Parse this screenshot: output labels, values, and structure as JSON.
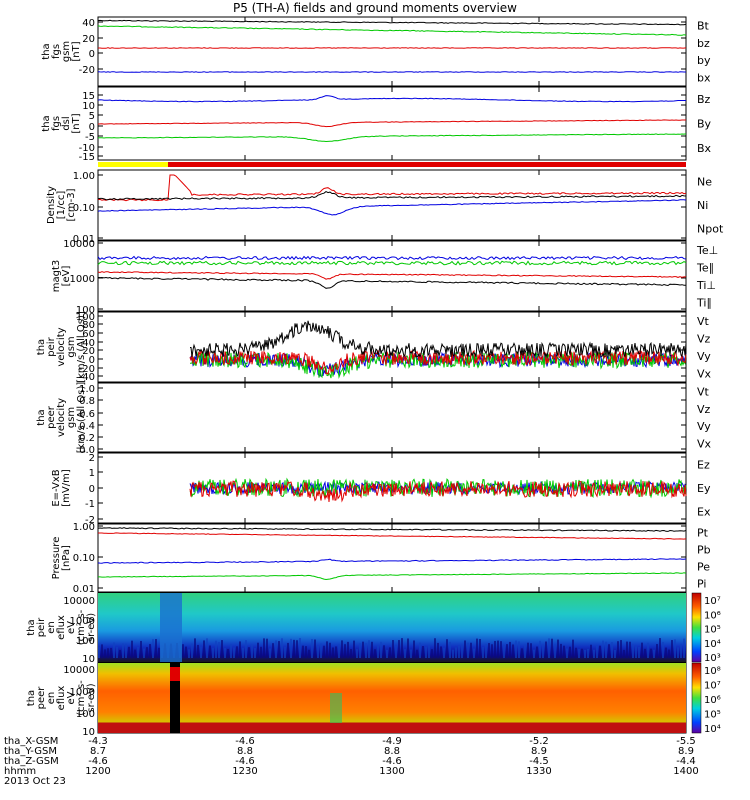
{
  "title": "P5 (TH-A) fields and ground moments overview",
  "date": "2013 Oct 23",
  "panels": [
    {
      "id": "fgs-gsm",
      "ylabel": [
        "tha",
        "fgs",
        "gsm",
        "[nT]"
      ],
      "ticks": [
        "40",
        "20",
        "0",
        "-20"
      ],
      "legend": [
        {
          "label": "Bt",
          "color": "#000000"
        },
        {
          "label": "bz",
          "color": "#e00000"
        },
        {
          "label": "by",
          "color": "#00c800"
        },
        {
          "label": "bx",
          "color": "#0000e0"
        }
      ]
    },
    {
      "id": "fgs-dsl",
      "ylabel": [
        "tha",
        "fgs",
        "dsl",
        "[nT]"
      ],
      "ticks": [
        "15",
        "10",
        "5",
        "0",
        "-5",
        "-10",
        "-15"
      ],
      "legend": [
        {
          "label": "Bz",
          "color": "#e00000"
        },
        {
          "label": "By",
          "color": "#00c800"
        },
        {
          "label": "Bx",
          "color": "#0000e0"
        }
      ]
    },
    {
      "id": "density",
      "ylabel": [
        "Density",
        "[1/cc]",
        "[cm-3]"
      ],
      "ticks": [
        "1.00",
        "0.10",
        "0.01"
      ],
      "legend": [
        {
          "label": "Ne",
          "color": "#e00000"
        },
        {
          "label": "Ni",
          "color": "#000000"
        },
        {
          "label": "Npot",
          "color": "#0000e0"
        }
      ]
    },
    {
      "id": "temperature",
      "ylabel": [
        "magt3",
        "[eV]"
      ],
      "ticks": [
        "10000",
        "1000",
        "100"
      ],
      "legend": [
        {
          "label": "Te⊥",
          "color": "#e00000"
        },
        {
          "label": "Te∥",
          "color": "#000000"
        },
        {
          "label": "Ti⊥",
          "color": "#e00000"
        },
        {
          "label": "Ti∥",
          "color": "#00c800"
        }
      ]
    },
    {
      "id": "peir-velocity",
      "ylabel": [
        "tha",
        "peir",
        "velocity",
        "gsm",
        "[km/s (All Qs)]"
      ],
      "ticks": [
        "100",
        "80",
        "60",
        "40",
        "20",
        "0",
        "-20",
        "-40"
      ],
      "legend": [
        {
          "label": "Vt",
          "color": "#000000"
        },
        {
          "label": "Vz",
          "color": "#e00000"
        },
        {
          "label": "Vy",
          "color": "#00c800"
        },
        {
          "label": "Vx",
          "color": "#0000e0"
        }
      ]
    },
    {
      "id": "peer-velocity",
      "ylabel": [
        "tha",
        "peer",
        "velocity",
        "gsm",
        "[km/s (All Qs)]"
      ],
      "ticks": [
        "1.0",
        "0.8",
        "0.6",
        "0.4",
        "0.2",
        "0.0"
      ],
      "legend": [
        {
          "label": "Vt",
          "color": "#000000"
        },
        {
          "label": "Vz",
          "color": "#e00000"
        },
        {
          "label": "Vy",
          "color": "#00c800"
        },
        {
          "label": "Vx",
          "color": "#0000e0"
        }
      ]
    },
    {
      "id": "efield",
      "ylabel": [
        "E=-VxB",
        "[mV/m]"
      ],
      "ticks": [
        "2",
        "1",
        "0",
        "-1",
        "-2"
      ],
      "legend": [
        {
          "label": "Ez",
          "color": "#e00000"
        },
        {
          "label": "Ey",
          "color": "#00c800"
        },
        {
          "label": "Ex",
          "color": "#0000e0"
        }
      ]
    },
    {
      "id": "pressure",
      "ylabel": [
        "Pressure",
        "[nPa]"
      ],
      "ticks": [
        "1.00",
        "0.10",
        "0.01"
      ],
      "legend": [
        {
          "label": "Pt",
          "color": "#000000"
        },
        {
          "label": "Pb",
          "color": "#e00000"
        },
        {
          "label": "Pe",
          "color": "#00c800"
        },
        {
          "label": "Pi",
          "color": "#0000e0"
        }
      ]
    },
    {
      "id": "peir-eflux",
      "ylabel": [
        "tha",
        "peir",
        "en",
        "eflux",
        "eV",
        "(cm²-s-",
        "sr-eV)"
      ],
      "ticks": [
        "10000",
        "1000",
        "100",
        "10"
      ],
      "colorbar": [
        "10⁷",
        "10⁶",
        "10⁵",
        "10⁴",
        "10³"
      ]
    },
    {
      "id": "peer-eflux",
      "ylabel": [
        "tha",
        "peer",
        "en",
        "eflux",
        "eV",
        "(cm²-s-",
        "sr-eV)"
      ],
      "ticks": [
        "10000",
        "1000",
        "100",
        "10"
      ],
      "colorbar": [
        "10⁸",
        "10⁷",
        "10⁶",
        "10⁵",
        "10⁴"
      ]
    }
  ],
  "xaxis": {
    "row_labels": [
      "tha_X-GSM",
      "tha_Y-GSM",
      "tha_Z-GSM",
      "hhmm"
    ],
    "columns": [
      [
        "-4.3",
        "8.7",
        "-4.6",
        "1200"
      ],
      [
        "-4.6",
        "8.8",
        "-4.6",
        "1230"
      ],
      [
        "-4.9",
        "8.8",
        "-4.6",
        "1300"
      ],
      [
        "-5.2",
        "8.9",
        "-4.5",
        "1330"
      ],
      [
        "-5.5",
        "8.9",
        "-4.4",
        "1400"
      ]
    ]
  },
  "chart_data": {
    "type": "line",
    "x": [
      "1200",
      "1230",
      "1300",
      "1330",
      "1400"
    ],
    "series": [
      {
        "name": "Bt",
        "values": [
          43,
          42,
          40,
          38,
          36
        ]
      },
      {
        "name": "bz",
        "values": [
          5,
          5,
          5,
          5,
          5
        ]
      },
      {
        "name": "by",
        "values": [
          33,
          31,
          28,
          26,
          24
        ]
      },
      {
        "name": "bx",
        "values": [
          -20,
          -20,
          -20,
          -20,
          -20
        ]
      }
    ]
  }
}
